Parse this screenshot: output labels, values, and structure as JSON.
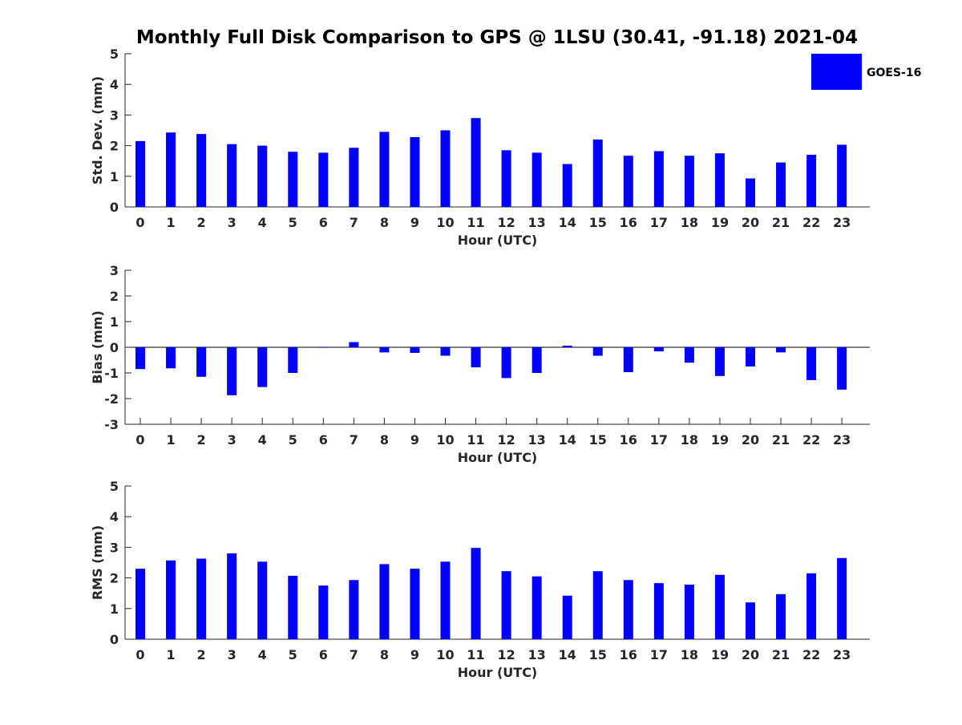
{
  "chart_data": {
    "title": "Monthly Full Disk Comparison to GPS @ 1LSU (30.41, -91.18) 2021-04",
    "type": "bar",
    "categories": [
      "0",
      "1",
      "2",
      "3",
      "4",
      "5",
      "6",
      "7",
      "8",
      "9",
      "10",
      "11",
      "12",
      "13",
      "14",
      "15",
      "16",
      "17",
      "18",
      "19",
      "20",
      "21",
      "22",
      "23"
    ],
    "series_color": "#0000ff",
    "legend": {
      "label": "GOES-16",
      "placement": "top-right"
    },
    "panels": [
      {
        "id": "std",
        "ylabel": "Std. Dev. (mm)",
        "xlabel": "Hour (UTC)",
        "ylim": [
          0,
          5
        ],
        "yticks": [
          0,
          1,
          2,
          3,
          4,
          5
        ],
        "values": [
          2.15,
          2.43,
          2.38,
          2.05,
          2.0,
          1.8,
          1.77,
          1.93,
          2.45,
          2.28,
          2.5,
          2.9,
          1.85,
          1.77,
          1.4,
          2.2,
          1.67,
          1.82,
          1.67,
          1.75,
          0.93,
          1.45,
          1.7,
          2.03
        ]
      },
      {
        "id": "bias",
        "ylabel": "Bias (mm)",
        "xlabel": "Hour (UTC)",
        "ylim": [
          -3,
          3
        ],
        "yticks": [
          -3,
          -2,
          -1,
          0,
          1,
          2,
          3
        ],
        "values": [
          -0.85,
          -0.82,
          -1.15,
          -1.87,
          -1.55,
          -1.0,
          -0.02,
          0.2,
          -0.2,
          -0.22,
          -0.33,
          -0.78,
          -1.2,
          -1.0,
          0.06,
          -0.33,
          -0.97,
          -0.16,
          -0.6,
          -1.12,
          -0.75,
          -0.2,
          -1.28,
          -1.65
        ]
      },
      {
        "id": "rms",
        "ylabel": "RMS (mm)",
        "xlabel": "Hour (UTC)",
        "ylim": [
          0,
          5
        ],
        "yticks": [
          0,
          1,
          2,
          3,
          4,
          5
        ],
        "values": [
          2.3,
          2.57,
          2.63,
          2.8,
          2.53,
          2.07,
          1.75,
          1.93,
          2.45,
          2.3,
          2.53,
          2.98,
          2.22,
          2.05,
          1.42,
          2.22,
          1.93,
          1.83,
          1.78,
          2.1,
          1.2,
          1.47,
          2.15,
          2.65
        ]
      }
    ]
  }
}
